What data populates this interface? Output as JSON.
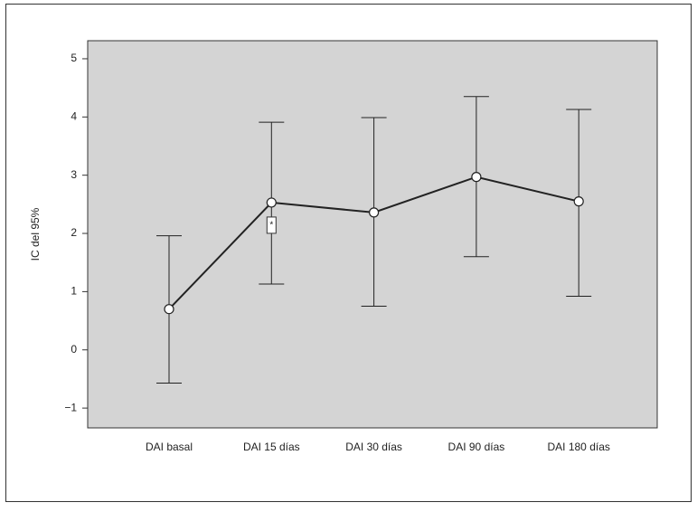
{
  "chart_data": {
    "type": "line-errorbar",
    "y_label": "IC del 95%",
    "categories": [
      "DAI basal",
      "DAI 15 días",
      "DAI 30 días",
      "DAI 90 días",
      "DAI 180 días"
    ],
    "values": [
      0.7,
      2.53,
      2.36,
      2.97,
      2.55
    ],
    "lower": [
      -0.57,
      1.13,
      0.75,
      1.6,
      0.92
    ],
    "upper": [
      1.96,
      3.91,
      3.99,
      4.35,
      4.13
    ],
    "color": "#222222",
    "annotation": "*",
    "ylim": [
      -1.34,
      5.31
    ],
    "yticks": [
      {
        "value": -1,
        "label": "−1"
      },
      0,
      1,
      2,
      3,
      4,
      5
    ]
  }
}
